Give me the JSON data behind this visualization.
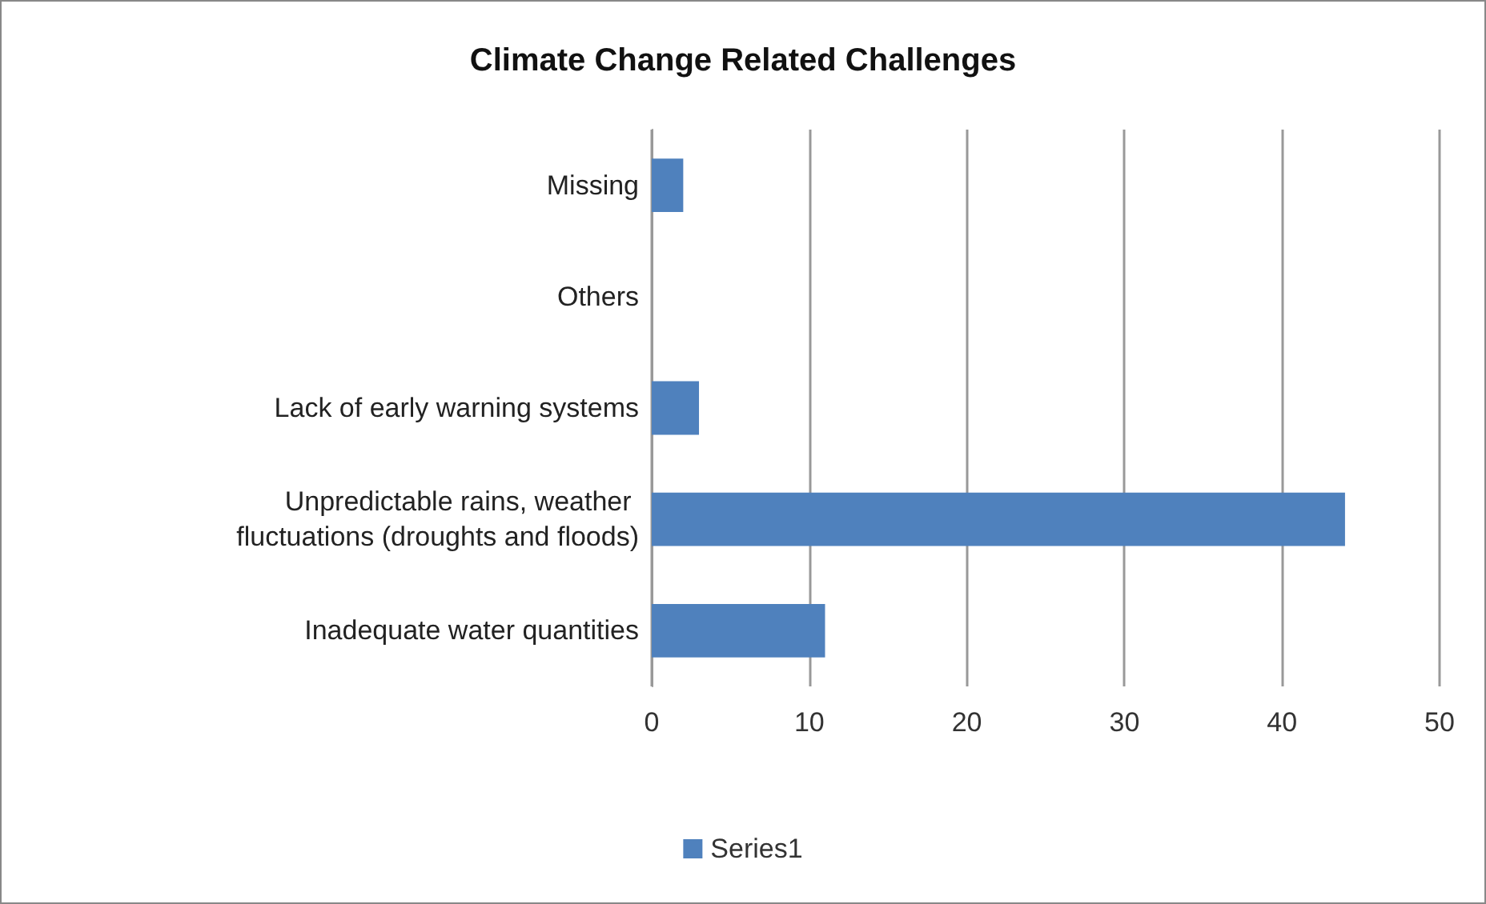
{
  "chart_data": {
    "type": "bar",
    "orientation": "horizontal",
    "title": "Climate Change Related Challenges",
    "categories": [
      "Missing",
      "Others",
      "Lack of early warning systems",
      "Unpredictable rains, weather fluctuations (droughts and floods)",
      "Inadequate water quantities"
    ],
    "series": [
      {
        "name": "Series1",
        "color": "#4f81bd",
        "values": [
          2,
          0,
          3,
          44,
          11
        ]
      }
    ],
    "xlim": [
      0,
      50
    ],
    "xticks": [
      0,
      10,
      20,
      30,
      40,
      50
    ],
    "grid": "x",
    "legend": "bottom"
  }
}
